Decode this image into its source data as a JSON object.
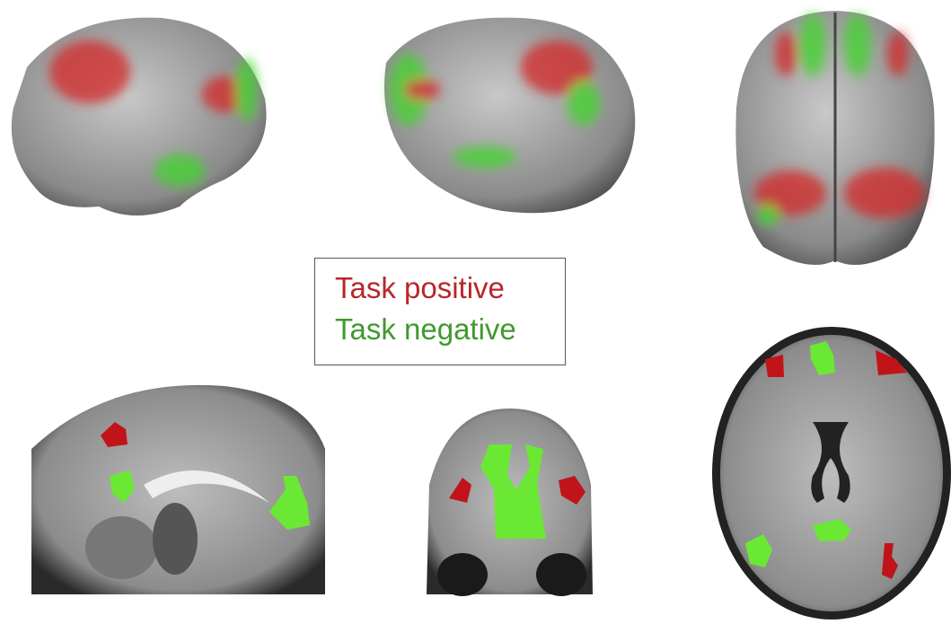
{
  "legend": {
    "items": [
      {
        "label": "Task positive",
        "color": "#b8262b"
      },
      {
        "label": "Task negative",
        "color": "#3f9a2e"
      }
    ]
  }
}
